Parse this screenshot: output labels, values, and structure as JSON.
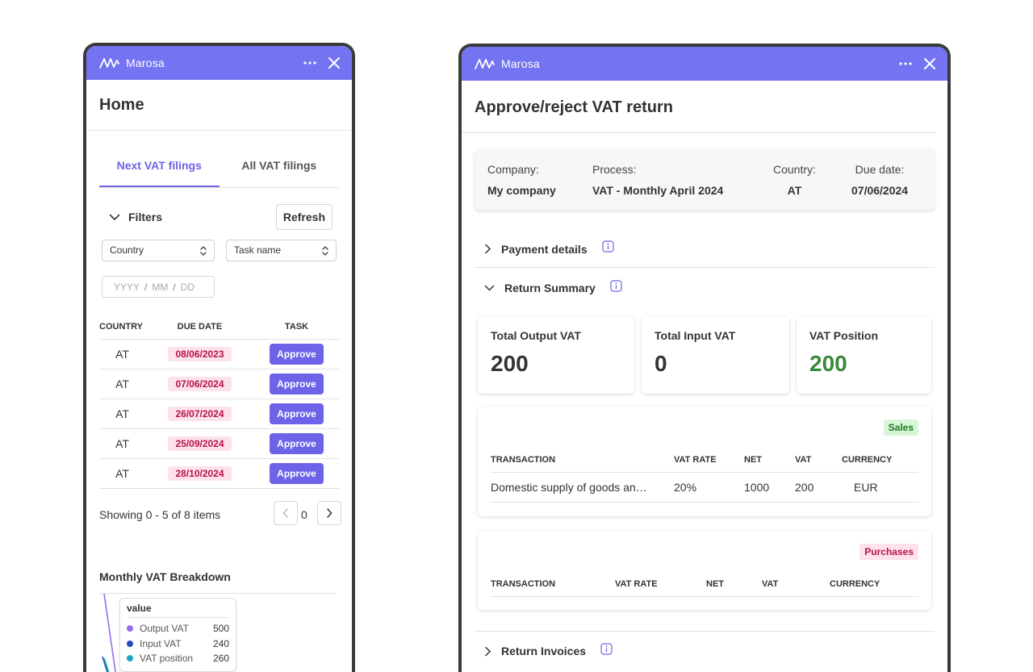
{
  "colors": {
    "accent": "#6c63e8",
    "topbar": "#7474f2",
    "badge_bg": "#fde2ec",
    "badge_text": "#b8124c",
    "positive": "#3a8a3a"
  },
  "app": {
    "name": "Marosa",
    "logo_icon": "marosa-logo-icon",
    "more_icon": "more-horizontal-icon",
    "close_icon": "close-icon"
  },
  "left": {
    "title": "Home",
    "tabs": [
      {
        "label": "Next VAT filings",
        "active": true
      },
      {
        "label": "All VAT filings",
        "active": false
      }
    ],
    "filters": {
      "label": "Filters",
      "refresh_label": "Refresh",
      "country_select": "Country",
      "task_select": "Task name",
      "date_placeholder": {
        "y": "YYYY",
        "m": "MM",
        "d": "DD",
        "sep": "/"
      }
    },
    "table": {
      "headers": {
        "country": "COUNTRY",
        "due_date": "DUE DATE",
        "task": "TASK"
      },
      "rows": [
        {
          "country": "AT",
          "due_date": "08/06/2023",
          "task": "Approve"
        },
        {
          "country": "AT",
          "due_date": "07/06/2024",
          "task": "Approve"
        },
        {
          "country": "AT",
          "due_date": "26/07/2024",
          "task": "Approve"
        },
        {
          "country": "AT",
          "due_date": "25/09/2024",
          "task": "Approve"
        },
        {
          "country": "AT",
          "due_date": "28/10/2024",
          "task": "Approve"
        }
      ]
    },
    "pagination": {
      "text": "Showing 0 - 5 of 8 items",
      "page": "0"
    },
    "chart": {
      "title": "Monthly VAT Breakdown",
      "tooltip": {
        "title": "value",
        "items": [
          {
            "label": "Output VAT",
            "value": "500",
            "color": "#9b6cf0"
          },
          {
            "label": "Input VAT",
            "value": "240",
            "color": "#1f4fb8"
          },
          {
            "label": "VAT position",
            "value": "260",
            "color": "#1aa6c4"
          }
        ]
      }
    }
  },
  "right": {
    "title": "Approve/reject VAT return",
    "info": {
      "company_label": "Company:",
      "company": "My company",
      "process_label": "Process:",
      "process": "VAT - Monthly April 2024",
      "country_label": "Country:",
      "country": "AT",
      "due_label": "Due date:",
      "due": "07/06/2024"
    },
    "sections": {
      "payment": "Payment details",
      "summary": "Return Summary",
      "invoices": "Return Invoices"
    },
    "metrics": [
      {
        "label": "Total Output VAT",
        "value": "200"
      },
      {
        "label": "Total Input VAT",
        "value": "0"
      },
      {
        "label": "VAT Position",
        "value": "200"
      }
    ],
    "sales": {
      "tag": "Sales",
      "headers": {
        "transaction": "TRANSACTION",
        "rate": "VAT RATE",
        "net": "NET",
        "vat": "VAT",
        "currency": "CURRENCY"
      },
      "rows": [
        {
          "transaction": "Domestic supply of goods an…",
          "rate": "20%",
          "net": "1000",
          "vat": "200",
          "currency": "EUR"
        }
      ]
    },
    "purchases": {
      "tag": "Purchases",
      "headers": {
        "transaction": "TRANSACTION",
        "rate": "VAT RATE",
        "net": "NET",
        "vat": "VAT",
        "currency": "CURRENCY"
      }
    }
  }
}
